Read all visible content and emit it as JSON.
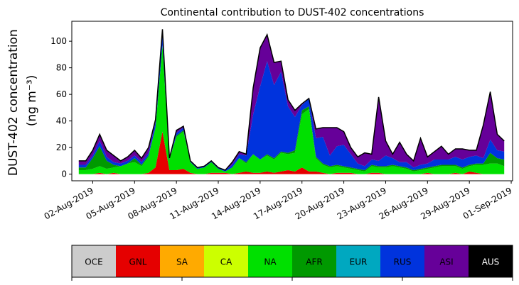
{
  "chart_data": {
    "type": "area",
    "stacked": true,
    "title": "Continental contribution to DUST-402 concentrations",
    "ylabel_line1": "DUST-402 concentration",
    "ylabel_line2": "(ng m⁻³)",
    "ylim": [
      -5,
      115
    ],
    "yticks": [
      0,
      20,
      40,
      60,
      80,
      100
    ],
    "x_start_date": "2019-07-31",
    "x_end_date": "2019-09-01",
    "xticks": [
      {
        "date": "2019-08-02",
        "label": "02-Aug-2019"
      },
      {
        "date": "2019-08-05",
        "label": "05-Aug-2019"
      },
      {
        "date": "2019-08-08",
        "label": "08-Aug-2019"
      },
      {
        "date": "2019-08-11",
        "label": "11-Aug-2019"
      },
      {
        "date": "2019-08-14",
        "label": "14-Aug-2019"
      },
      {
        "date": "2019-08-17",
        "label": "17-Aug-2019"
      },
      {
        "date": "2019-08-20",
        "label": "20-Aug-2019"
      },
      {
        "date": "2019-08-23",
        "label": "23-Aug-2019"
      },
      {
        "date": "2019-08-26",
        "label": "26-Aug-2019"
      },
      {
        "date": "2019-08-29",
        "label": "29-Aug-2019"
      },
      {
        "date": "2019-09-01",
        "label": "01-Sep-2019"
      }
    ],
    "x": [
      "2019-08-01",
      "2019-08-01 12:00",
      "2019-08-02",
      "2019-08-02 12:00",
      "2019-08-03",
      "2019-08-03 12:00",
      "2019-08-04",
      "2019-08-04 12:00",
      "2019-08-05",
      "2019-08-05 12:00",
      "2019-08-06",
      "2019-08-06 12:00",
      "2019-08-07",
      "2019-08-07 12:00",
      "2019-08-08",
      "2019-08-08 12:00",
      "2019-08-09",
      "2019-08-09 12:00",
      "2019-08-10",
      "2019-08-10 12:00",
      "2019-08-11",
      "2019-08-11 12:00",
      "2019-08-12",
      "2019-08-12 12:00",
      "2019-08-13",
      "2019-08-13 12:00",
      "2019-08-14",
      "2019-08-14 12:00",
      "2019-08-15",
      "2019-08-15 12:00",
      "2019-08-16",
      "2019-08-16 12:00",
      "2019-08-17",
      "2019-08-17 12:00",
      "2019-08-18",
      "2019-08-18 12:00",
      "2019-08-19",
      "2019-08-19 12:00",
      "2019-08-20",
      "2019-08-20 12:00",
      "2019-08-21",
      "2019-08-21 12:00",
      "2019-08-22",
      "2019-08-22 12:00",
      "2019-08-23",
      "2019-08-23 12:00",
      "2019-08-24",
      "2019-08-24 12:00",
      "2019-08-25",
      "2019-08-25 12:00",
      "2019-08-26",
      "2019-08-26 12:00",
      "2019-08-27",
      "2019-08-27 12:00",
      "2019-08-28",
      "2019-08-28 12:00",
      "2019-08-29",
      "2019-08-29 12:00",
      "2019-08-30",
      "2019-08-30 12:00",
      "2019-08-31",
      "2019-08-31 12:00"
    ],
    "series": [
      {
        "name": "OCE",
        "color": "#cccccc",
        "values": [
          0,
          0,
          0,
          0,
          0,
          0,
          0,
          0,
          0,
          0,
          0,
          0,
          0,
          0,
          0,
          0,
          0,
          0,
          0,
          0,
          0,
          0,
          0,
          0,
          0,
          0,
          0,
          0,
          0,
          0,
          0,
          0,
          0,
          0,
          0,
          0,
          0,
          0,
          0,
          0,
          0,
          0,
          0,
          0,
          0,
          0,
          0,
          0,
          0,
          0,
          0,
          0,
          0,
          0,
          0,
          0,
          0,
          0,
          0,
          0,
          0,
          0
        ]
      },
      {
        "name": "GNL",
        "color": "#e50000",
        "values": [
          0,
          0,
          0,
          1,
          0,
          1,
          0,
          0,
          0,
          0,
          1,
          5,
          32,
          3,
          3,
          4,
          1,
          0,
          0,
          1,
          1,
          1,
          0,
          1,
          2,
          1,
          1,
          2,
          1,
          2,
          3,
          2,
          5,
          2,
          2,
          1,
          0,
          1,
          1,
          1,
          0,
          0,
          1,
          1,
          0,
          0,
          0,
          0,
          0,
          0,
          1,
          0,
          0,
          0,
          1,
          0,
          2,
          1,
          0,
          0,
          0,
          0
        ]
      },
      {
        "name": "SA",
        "color": "#ffaa00",
        "values": [
          0,
          0,
          0,
          0,
          0,
          0,
          0,
          0,
          0,
          0,
          0,
          0,
          0,
          0,
          0,
          0,
          0,
          0,
          0,
          0,
          0,
          0,
          0,
          0,
          0,
          0,
          0,
          0,
          0,
          0,
          0,
          0,
          0,
          0,
          0,
          0,
          0,
          0,
          0,
          0,
          0,
          0,
          0,
          0,
          0,
          0,
          0,
          0,
          0,
          0,
          0,
          0,
          0,
          0,
          0,
          0,
          0,
          0,
          0,
          0,
          0,
          0
        ]
      },
      {
        "name": "CA",
        "color": "#ccff00",
        "values": [
          0,
          0,
          0,
          0,
          0,
          0,
          0,
          0,
          0,
          0,
          0,
          0,
          0,
          0,
          0,
          0,
          0,
          0,
          0,
          0,
          0,
          0,
          0,
          0,
          0,
          0,
          0,
          0,
          0,
          0,
          0,
          0,
          0,
          0,
          0,
          0,
          0,
          0,
          0,
          0,
          0,
          0,
          0,
          0,
          0,
          0,
          0,
          0,
          0,
          0,
          0,
          0,
          0,
          0,
          0,
          0,
          0,
          0,
          0,
          0,
          0,
          0
        ]
      },
      {
        "name": "NA",
        "color": "#00e000",
        "values": [
          3,
          3,
          4,
          5,
          4,
          4,
          6,
          8,
          9,
          6,
          12,
          30,
          65,
          8,
          25,
          28,
          8,
          4,
          5,
          8,
          3,
          1,
          5,
          11,
          6,
          14,
          10,
          12,
          10,
          14,
          12,
          14,
          40,
          47,
          10,
          6,
          5,
          5,
          4,
          3,
          3,
          2,
          5,
          4,
          5,
          6,
          5,
          4,
          2,
          3,
          3,
          5,
          6,
          6,
          5,
          4,
          4,
          6,
          7,
          8,
          8,
          6
        ]
      },
      {
        "name": "AFR",
        "color": "#009900",
        "values": [
          2,
          2,
          8,
          15,
          6,
          2,
          0,
          0,
          3,
          1,
          1,
          0,
          0,
          0,
          1,
          1,
          0,
          0,
          0,
          0,
          0,
          0,
          0,
          0,
          1,
          0,
          0,
          1,
          1,
          1,
          1,
          2,
          3,
          2,
          1,
          1,
          1,
          1,
          1,
          1,
          1,
          1,
          1,
          1,
          1,
          1,
          1,
          1,
          1,
          1,
          1,
          1,
          1,
          1,
          1,
          1,
          1,
          1,
          1,
          8,
          4,
          5
        ]
      },
      {
        "name": "EUR",
        "color": "#00a8c0",
        "values": [
          0,
          0,
          0,
          0,
          0,
          0,
          0,
          0,
          0,
          0,
          0,
          0,
          0,
          0,
          0,
          0,
          0,
          0,
          0,
          0,
          0,
          0,
          0,
          0,
          0,
          0,
          0,
          0,
          0,
          0,
          0,
          0,
          0,
          0,
          0,
          0,
          0,
          0,
          0,
          0,
          0,
          0,
          0,
          0,
          0,
          0,
          0,
          0,
          0,
          0,
          0,
          0,
          0,
          0,
          0,
          0,
          0,
          0,
          0,
          0,
          0,
          0
        ]
      },
      {
        "name": "RUS",
        "color": "#0033dd",
        "values": [
          2,
          2,
          2,
          4,
          3,
          2,
          2,
          2,
          2,
          2,
          2,
          4,
          10,
          1,
          2,
          2,
          1,
          1,
          1,
          1,
          1,
          1,
          2,
          3,
          5,
          30,
          55,
          70,
          55,
          60,
          35,
          25,
          4,
          6,
          14,
          20,
          8,
          14,
          16,
          10,
          4,
          3,
          4,
          4,
          8,
          5,
          3,
          4,
          2,
          3,
          3,
          5,
          4,
          4,
          6,
          6,
          6,
          6,
          4,
          10,
          6,
          6
        ]
      },
      {
        "name": "ASI",
        "color": "#660099",
        "values": [
          3,
          3,
          4,
          5,
          5,
          5,
          2,
          3,
          4,
          3,
          4,
          2,
          2,
          0,
          2,
          1,
          0,
          0,
          0,
          0,
          0,
          0,
          2,
          2,
          1,
          20,
          29,
          20,
          17,
          8,
          5,
          5,
          1,
          0,
          7,
          7,
          21,
          14,
          10,
          5,
          5,
          10,
          4,
          48,
          11,
          3,
          15,
          6,
          5,
          20,
          5,
          6,
          10,
          4,
          6,
          8,
          5,
          4,
          25,
          36,
          12,
          8
        ]
      },
      {
        "name": "AUS",
        "color": "#000000",
        "values": [
          0,
          0,
          0,
          0,
          0,
          0,
          0,
          0,
          0,
          0,
          0,
          0,
          0,
          0,
          0,
          0,
          0,
          0,
          0,
          0,
          0,
          0,
          0,
          0,
          0,
          0,
          0,
          0,
          0,
          0,
          0,
          0,
          0,
          0,
          0,
          0,
          0,
          0,
          0,
          0,
          0,
          0,
          0,
          0,
          0,
          0,
          0,
          0,
          0,
          0,
          0,
          0,
          0,
          0,
          0,
          0,
          0,
          0,
          0,
          0,
          0,
          0
        ]
      }
    ],
    "legend": {
      "placement": "bottom",
      "items": [
        {
          "label": "OCE",
          "color": "#cccccc",
          "text_color": "#000000"
        },
        {
          "label": "GNL",
          "color": "#e50000",
          "text_color": "#000000"
        },
        {
          "label": "SA",
          "color": "#ffaa00",
          "text_color": "#000000"
        },
        {
          "label": "CA",
          "color": "#ccff00",
          "text_color": "#000000"
        },
        {
          "label": "NA",
          "color": "#00e000",
          "text_color": "#000000"
        },
        {
          "label": "AFR",
          "color": "#009900",
          "text_color": "#000000"
        },
        {
          "label": "EUR",
          "color": "#00a8c0",
          "text_color": "#000000"
        },
        {
          "label": "RUS",
          "color": "#0033dd",
          "text_color": "#000000"
        },
        {
          "label": "ASI",
          "color": "#660099",
          "text_color": "#000000"
        },
        {
          "label": "AUS",
          "color": "#000000",
          "text_color": "#ffffff"
        }
      ]
    },
    "grid": false
  }
}
